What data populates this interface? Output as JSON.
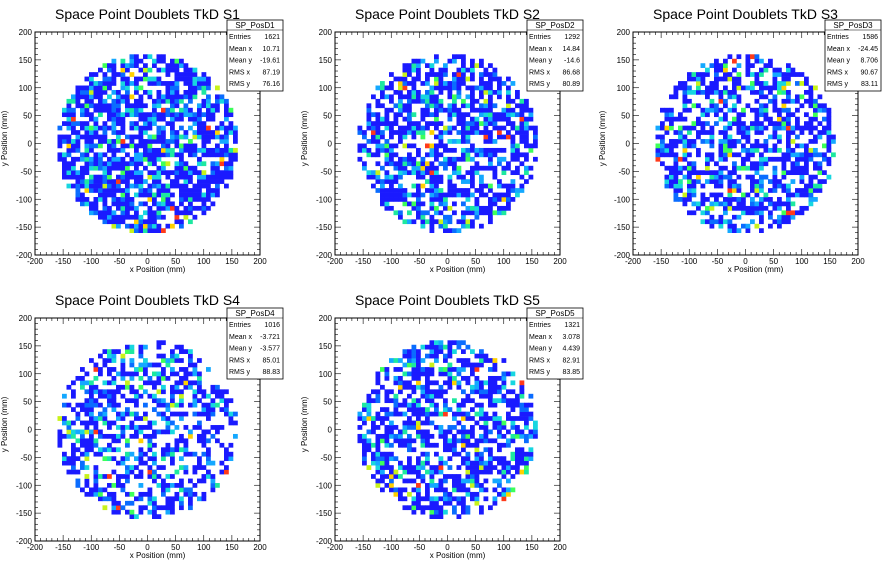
{
  "chart_data": [
    {
      "type": "heatmap",
      "title": "Space Point Doublets TkD S1",
      "xlabel": "x Position (mm)",
      "ylabel": "y Position (mm)",
      "xlim": [
        -200,
        200
      ],
      "ylim": [
        -200,
        200
      ],
      "x_ticks": [
        "-200",
        "-150",
        "-100",
        "-50",
        "0",
        "50",
        "100",
        "150",
        "200"
      ],
      "y_ticks": [
        "-200",
        "-150",
        "-100",
        "-50",
        "0",
        "50",
        "100",
        "150",
        "200"
      ],
      "stats": {
        "name": "SP_PosD1",
        "rows": [
          [
            "Entries",
            "1621"
          ],
          [
            "Mean x",
            "10.71"
          ],
          [
            "Mean y",
            "-19.61"
          ],
          [
            "RMS x",
            "87.19"
          ],
          [
            "RMS y",
            "76.16"
          ]
        ]
      },
      "radius": 160,
      "bin": 8,
      "fill_fraction": 0.72,
      "seed": 11
    },
    {
      "type": "heatmap",
      "title": "Space Point Doublets TkD S2",
      "xlabel": "x Position (mm)",
      "ylabel": "y Position (mm)",
      "xlim": [
        -200,
        200
      ],
      "ylim": [
        -200,
        200
      ],
      "x_ticks": [
        "-200",
        "-150",
        "-100",
        "-50",
        "0",
        "50",
        "100",
        "150",
        "200"
      ],
      "y_ticks": [
        "-200",
        "-150",
        "-100",
        "-50",
        "0",
        "50",
        "100",
        "150",
        "200"
      ],
      "stats": {
        "name": "SP_PosD2",
        "rows": [
          [
            "Entries",
            "1292"
          ],
          [
            "Mean x",
            "14.84"
          ],
          [
            "Mean y",
            "-14.6"
          ],
          [
            "RMS x",
            "86.68"
          ],
          [
            "RMS y",
            "80.89"
          ]
        ]
      },
      "radius": 160,
      "bin": 8,
      "fill_fraction": 0.62,
      "seed": 23
    },
    {
      "type": "heatmap",
      "title": "Space Point Doublets TkD S3",
      "xlabel": "x Position (mm)",
      "ylabel": "y Position (mm)",
      "xlim": [
        -200,
        200
      ],
      "ylim": [
        -200,
        200
      ],
      "x_ticks": [
        "-200",
        "-150",
        "-100",
        "-50",
        "0",
        "50",
        "100",
        "150",
        "200"
      ],
      "y_ticks": [
        "-200",
        "-150",
        "-100",
        "-50",
        "0",
        "50",
        "100",
        "150",
        "200"
      ],
      "stats": {
        "name": "SP_PosD3",
        "rows": [
          [
            "Entries",
            "1586"
          ],
          [
            "Mean x",
            "-24.45"
          ],
          [
            "Mean y",
            "8.706"
          ],
          [
            "RMS x",
            "90.67"
          ],
          [
            "RMS y",
            "83.11"
          ]
        ]
      },
      "radius": 160,
      "bin": 8,
      "fill_fraction": 0.6,
      "seed": 37
    },
    {
      "type": "heatmap",
      "title": "Space Point Doublets TkD S4",
      "xlabel": "x Position (mm)",
      "ylabel": "y Position (mm)",
      "xlim": [
        -200,
        200
      ],
      "ylim": [
        -200,
        200
      ],
      "x_ticks": [
        "-200",
        "-150",
        "-100",
        "-50",
        "0",
        "50",
        "100",
        "150",
        "200"
      ],
      "y_ticks": [
        "-200",
        "-150",
        "-100",
        "-50",
        "0",
        "50",
        "100",
        "150",
        "200"
      ],
      "stats": {
        "name": "SP_PosD4",
        "rows": [
          [
            "Entries",
            "1016"
          ],
          [
            "Mean x",
            "-3.721"
          ],
          [
            "Mean y",
            "-3.577"
          ],
          [
            "RMS x",
            "85.01"
          ],
          [
            "RMS y",
            "88.83"
          ]
        ]
      },
      "radius": 160,
      "bin": 8,
      "fill_fraction": 0.5,
      "seed": 51
    },
    {
      "type": "heatmap",
      "title": "Space Point Doublets TkD S5",
      "xlabel": "x Position (mm)",
      "ylabel": "y Position (mm)",
      "xlim": [
        -200,
        200
      ],
      "ylim": [
        -200,
        200
      ],
      "x_ticks": [
        "-200",
        "-150",
        "-100",
        "-50",
        "0",
        "50",
        "100",
        "150",
        "200"
      ],
      "y_ticks": [
        "-200",
        "-150",
        "-100",
        "-50",
        "0",
        "50",
        "100",
        "150",
        "200"
      ],
      "stats": {
        "name": "SP_PosD5",
        "rows": [
          [
            "Entries",
            "1321"
          ],
          [
            "Mean x",
            "3.078"
          ],
          [
            "Mean y",
            "4.439"
          ],
          [
            "RMS x",
            "82.91"
          ],
          [
            "RMS y",
            "83.85"
          ]
        ]
      },
      "radius": 160,
      "bin": 8,
      "fill_fraction": 0.62,
      "seed": 67
    }
  ],
  "palette": [
    "#1a1aff",
    "#0a6cff",
    "#14a8ff",
    "#17d6e0",
    "#1de8a0",
    "#3dff5a",
    "#c8f21a",
    "#ffd000",
    "#ff3a1a"
  ]
}
